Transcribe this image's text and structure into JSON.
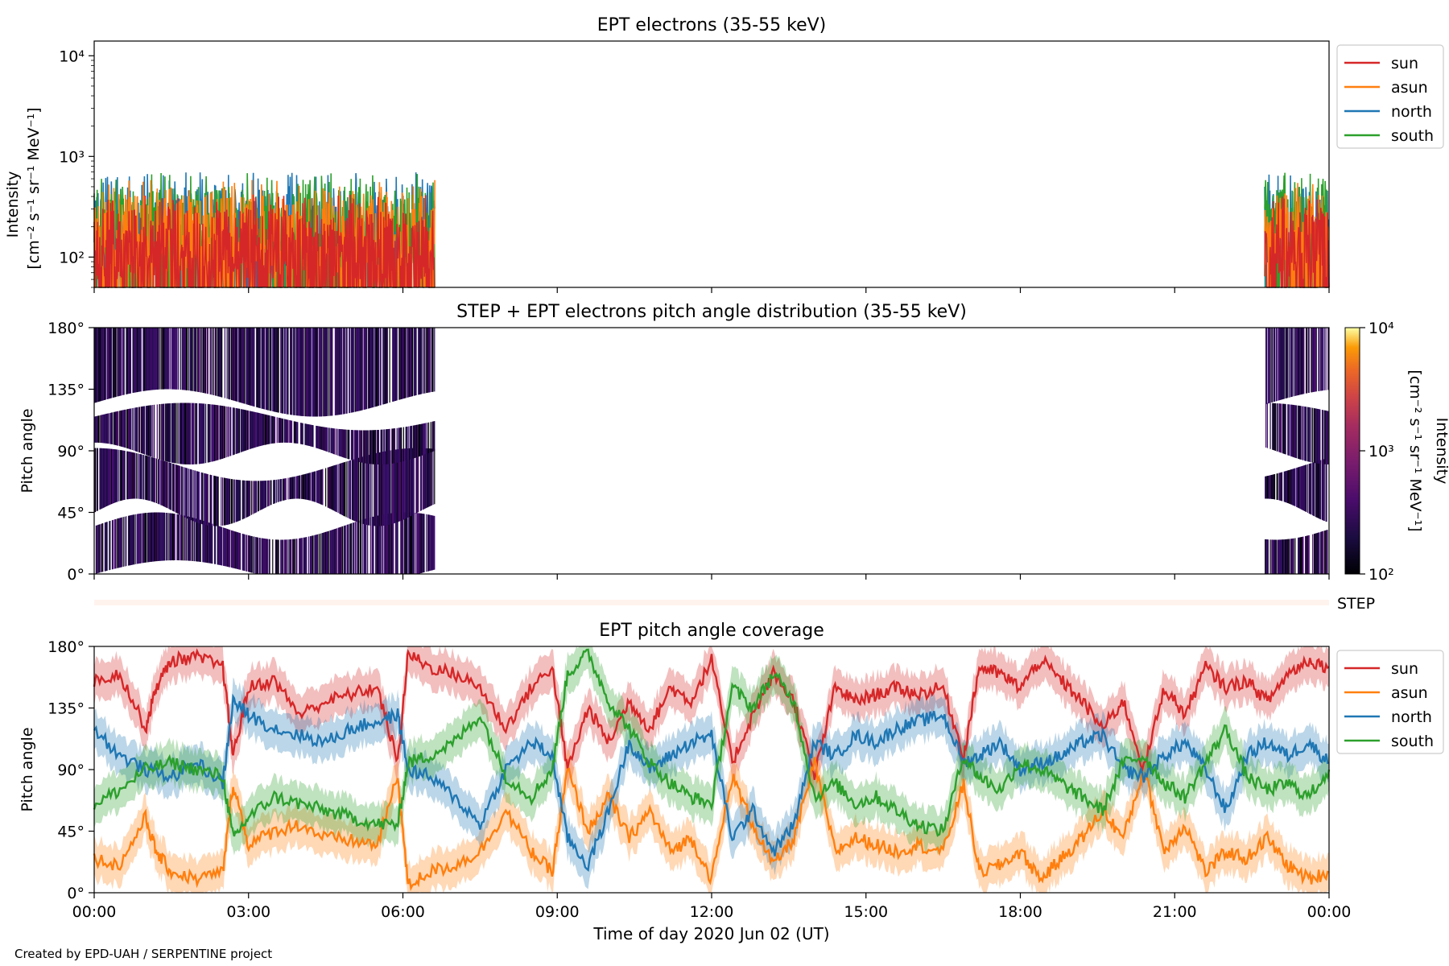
{
  "figure": {
    "credit": "Created by EPD-UAH / SERPENTINE project",
    "xlabel": "Time of day 2020 Jun 02 (UT)",
    "x_ticks": [
      "00:00",
      "03:00",
      "06:00",
      "09:00",
      "12:00",
      "15:00",
      "18:00",
      "21:00",
      "00:00"
    ]
  },
  "colors": {
    "sun": "#d62728",
    "asun": "#ff7f0e",
    "north": "#1f77b4",
    "south": "#2ca02c"
  },
  "chart_data": [
    {
      "type": "line",
      "title": "EPT electrons (35-55 keV)",
      "ylabel": [
        "Intensity",
        "[cm⁻² s⁻¹ sr⁻¹ MeV⁻¹]"
      ],
      "yscale": "log",
      "ylim": [
        50,
        14000
      ],
      "y_ticks": [
        "10²",
        "10³",
        "10⁴"
      ],
      "xlim_hours": [
        0,
        24
      ],
      "data_intervals_hours": [
        [
          0.0,
          6.62
        ],
        [
          22.75,
          24.0
        ]
      ],
      "legend": {
        "placement": "upper-right-outside",
        "entries": [
          "sun",
          "asun",
          "north",
          "south"
        ]
      },
      "series": [
        {
          "name": "sun",
          "typical_range": [
            60,
            300
          ]
        },
        {
          "name": "asun",
          "typical_range": [
            70,
            420
          ]
        },
        {
          "name": "north",
          "typical_range": [
            80,
            500
          ]
        },
        {
          "name": "south",
          "typical_range": [
            80,
            500
          ]
        }
      ]
    },
    {
      "type": "heatmap",
      "title": "STEP + EPT electrons pitch angle distribution (35-55 keV)",
      "ylabel": "Pitch angle",
      "ylim": [
        0,
        180
      ],
      "y_ticks": [
        "0°",
        "45°",
        "90°",
        "135°",
        "180°"
      ],
      "colorbar": {
        "label": "Intensity",
        "units": "[cm⁻² s⁻¹ sr⁻¹ MeV⁻¹]",
        "scale": "log",
        "range": [
          100,
          10000
        ],
        "ticks": [
          "10²",
          "10³",
          "10⁴"
        ],
        "colormap": "inferno"
      },
      "data_intervals_hours": [
        [
          0.0,
          6.62
        ],
        [
          22.75,
          24.0
        ]
      ]
    },
    {
      "type": "heatmap",
      "label": "STEP",
      "note_visible": "thin empty strip"
    },
    {
      "type": "line",
      "title": "EPT pitch angle coverage",
      "ylabel": "Pitch angle",
      "ylim": [
        0,
        180
      ],
      "y_ticks": [
        "0°",
        "45°",
        "90°",
        "135°",
        "180°"
      ],
      "xlim_hours": [
        0,
        24
      ],
      "legend": {
        "placement": "upper-right-outside",
        "entries": [
          "sun",
          "asun",
          "north",
          "south"
        ]
      },
      "band": "shaded spread around each line",
      "series": [
        {
          "name": "sun",
          "x": [
            0,
            0.5,
            1,
            1.2,
            1.5,
            2,
            2.5,
            2.7,
            3,
            3.5,
            4,
            4.5,
            5,
            5.5,
            5.9,
            6.1,
            6.5,
            7,
            7.5,
            8,
            8.5,
            8.9,
            9.2,
            9.6,
            10,
            10.4,
            10.8,
            11.2,
            11.6,
            12,
            12.4,
            12.8,
            13.2,
            13.6,
            14,
            14.4,
            14.8,
            15.2,
            15.6,
            16,
            16.5,
            16.9,
            17.2,
            17.6,
            18,
            18.4,
            18.8,
            19.2,
            19.6,
            20,
            20.4,
            20.8,
            21.2,
            21.6,
            22,
            22.4,
            22.8,
            23.2,
            23.6,
            24
          ],
          "y": [
            155,
            160,
            120,
            150,
            170,
            172,
            165,
            100,
            150,
            155,
            130,
            140,
            145,
            150,
            95,
            175,
            165,
            160,
            150,
            120,
            150,
            165,
            90,
            135,
            110,
            140,
            120,
            150,
            140,
            170,
            95,
            130,
            160,
            140,
            85,
            150,
            140,
            145,
            150,
            145,
            150,
            100,
            165,
            160,
            150,
            170,
            155,
            140,
            120,
            140,
            90,
            150,
            130,
            165,
            150,
            155,
            140,
            160,
            170,
            165
          ]
        },
        {
          "name": "asun",
          "x": [
            0,
            0.5,
            1,
            1.2,
            1.5,
            2,
            2.5,
            2.7,
            3,
            3.5,
            4,
            4.5,
            5,
            5.5,
            5.9,
            6.1,
            6.5,
            7,
            7.5,
            8,
            8.5,
            8.9,
            9.2,
            9.6,
            10,
            10.4,
            10.8,
            11.2,
            11.6,
            12,
            12.4,
            12.8,
            13.2,
            13.6,
            14,
            14.4,
            14.8,
            15.2,
            15.6,
            16,
            16.5,
            16.9,
            17.2,
            17.6,
            18,
            18.4,
            18.8,
            19.2,
            19.6,
            20,
            20.4,
            20.8,
            21.2,
            21.6,
            22,
            22.4,
            22.8,
            23.2,
            23.6,
            24
          ],
          "y": [
            25,
            20,
            55,
            30,
            15,
            10,
            15,
            80,
            35,
            45,
            50,
            40,
            38,
            35,
            85,
            5,
            15,
            20,
            30,
            60,
            30,
            15,
            90,
            45,
            70,
            40,
            60,
            30,
            40,
            10,
            85,
            50,
            20,
            40,
            95,
            30,
            40,
            35,
            30,
            35,
            30,
            80,
            15,
            20,
            30,
            10,
            25,
            40,
            60,
            40,
            90,
            30,
            50,
            15,
            30,
            25,
            40,
            20,
            10,
            15
          ]
        },
        {
          "name": "north",
          "x": [
            0,
            0.5,
            1,
            1.5,
            2,
            2.5,
            2.7,
            3,
            3.5,
            4,
            4.5,
            5,
            5.5,
            5.9,
            6.1,
            6.5,
            7,
            7.5,
            8,
            8.5,
            8.9,
            9.2,
            9.6,
            10,
            10.4,
            10.8,
            11.2,
            11.6,
            12,
            12.4,
            12.8,
            13.2,
            13.6,
            14,
            14.4,
            14.8,
            15.2,
            15.6,
            16,
            16.5,
            16.9,
            17.2,
            17.6,
            18,
            18.4,
            18.8,
            19.2,
            19.6,
            20,
            20.4,
            20.8,
            21.2,
            21.6,
            22,
            22.4,
            22.8,
            23.2,
            23.6,
            24
          ],
          "y": [
            120,
            100,
            90,
            85,
            95,
            80,
            140,
            130,
            120,
            115,
            110,
            120,
            125,
            130,
            90,
            85,
            70,
            50,
            90,
            110,
            100,
            40,
            20,
            60,
            110,
            90,
            100,
            110,
            115,
            40,
            60,
            30,
            50,
            110,
            100,
            115,
            110,
            120,
            125,
            130,
            95,
            100,
            110,
            90,
            95,
            100,
            110,
            115,
            90,
            85,
            100,
            110,
            90,
            60,
            100,
            110,
            100,
            110,
            95
          ]
        },
        {
          "name": "south",
          "x": [
            0,
            0.5,
            1,
            1.5,
            2,
            2.5,
            2.7,
            3,
            3.5,
            4,
            4.5,
            5,
            5.5,
            5.9,
            6.1,
            6.5,
            7,
            7.5,
            8,
            8.5,
            8.9,
            9.2,
            9.6,
            10,
            10.4,
            10.8,
            11.2,
            11.6,
            12,
            12.4,
            12.8,
            13.2,
            13.6,
            14,
            14.4,
            14.8,
            15.2,
            15.6,
            16,
            16.5,
            16.9,
            17.2,
            17.6,
            18,
            18.4,
            18.8,
            19.2,
            19.6,
            20,
            20.4,
            20.8,
            21.2,
            21.6,
            22,
            22.4,
            22.8,
            23.2,
            23.6,
            24
          ],
          "y": [
            65,
            75,
            90,
            95,
            90,
            85,
            40,
            55,
            70,
            65,
            60,
            55,
            50,
            50,
            95,
            100,
            110,
            130,
            85,
            70,
            90,
            160,
            175,
            140,
            120,
            95,
            80,
            70,
            65,
            150,
            135,
            160,
            140,
            70,
            80,
            65,
            70,
            60,
            50,
            45,
            100,
            85,
            75,
            95,
            90,
            80,
            70,
            60,
            95,
            100,
            80,
            70,
            95,
            120,
            85,
            75,
            80,
            70,
            90
          ]
        }
      ]
    }
  ]
}
